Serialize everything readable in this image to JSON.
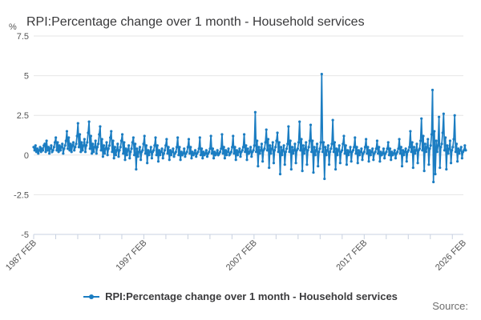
{
  "title": "RPI:Percentage change over 1 month - Household services",
  "source_label": "Source:",
  "legend": {
    "label": "RPI:Percentage change over 1 month - Household services"
  },
  "colors": {
    "line": "#1b7dc2",
    "grid": "#e6e6e6",
    "axis": "#c8d1e0",
    "tick_text": "#555555",
    "title_text": "#39393b"
  },
  "chart_data": {
    "type": "line",
    "title": "RPI:Percentage change over 1 month - Household services",
    "unit": "%",
    "frequency": "monthly",
    "xlabel": "",
    "ylabel": "%",
    "ylim": [
      -5,
      7.5
    ],
    "grid": true,
    "legend_position": "bottom",
    "y_ticks": [
      {
        "label": "7.5",
        "value": 7.5
      },
      {
        "label": "5",
        "value": 5
      },
      {
        "label": "2.5",
        "value": 2.5
      },
      {
        "label": "0",
        "value": 0
      },
      {
        "label": "-2.5",
        "value": -2.5
      },
      {
        "label": "-5",
        "value": -5
      }
    ],
    "x_ticks": [
      {
        "label": "1987 FEB",
        "year": 1987.083
      },
      {
        "label": "1997 FEB",
        "year": 1997.083
      },
      {
        "label": "2007 FEB",
        "year": 2007.083
      },
      {
        "label": "2017 FEB",
        "year": 2017.083
      },
      {
        "label": "2026 FEB",
        "year": 2026.083
      }
    ],
    "x_range_years": [
      1987.083,
      2026.083
    ],
    "minor_tick_step_years": 2,
    "series": [
      {
        "name": "RPI:Percentage change over 1 month - Household services",
        "start": "1987 FEB",
        "end": "2026 FEB",
        "values": [
          0.5,
          0.3,
          0.6,
          0.2,
          0.4,
          0.1,
          0.3,
          0.5,
          0.2,
          0.4,
          0.3,
          0.6,
          0.7,
          0.2,
          0.9,
          0.3,
          0.5,
          0.1,
          0.4,
          0.6,
          0.2,
          0.3,
          0.5,
          0.8,
          1.1,
          0.3,
          0.8,
          0.2,
          0.6,
          0.3,
          0.5,
          0.7,
          0.1,
          0.4,
          0.6,
          0.9,
          1.5,
          0.4,
          1.1,
          0.3,
          0.7,
          0.2,
          0.6,
          0.8,
          0.3,
          0.5,
          0.7,
          1.2,
          2.0,
          0.5,
          1.3,
          0.2,
          0.8,
          0.3,
          0.6,
          1.0,
          0.2,
          0.6,
          0.8,
          1.4,
          2.1,
          0.4,
          1.2,
          0.1,
          0.7,
          0.2,
          0.5,
          0.9,
          0.1,
          0.5,
          0.7,
          1.3,
          1.8,
          0.3,
          1.0,
          -0.1,
          0.6,
          0.1,
          0.4,
          0.8,
          0.0,
          0.4,
          0.6,
          1.1,
          1.5,
          0.2,
          0.9,
          -0.2,
          0.5,
          0.0,
          0.3,
          0.7,
          -0.1,
          0.3,
          0.5,
          0.9,
          1.3,
          0.1,
          0.8,
          -0.3,
          0.4,
          0.0,
          0.3,
          0.6,
          -0.2,
          0.2,
          0.4,
          0.8,
          1.1,
          0.0,
          0.7,
          -0.9,
          0.4,
          -0.1,
          0.2,
          0.5,
          -0.3,
          0.2,
          0.3,
          0.7,
          1.2,
          0.1,
          0.6,
          -0.5,
          0.3,
          0.0,
          0.2,
          0.5,
          -0.2,
          0.2,
          0.3,
          0.6,
          1.1,
          0.0,
          0.6,
          -0.4,
          0.3,
          0.0,
          0.2,
          0.4,
          -0.2,
          0.1,
          0.3,
          0.6,
          1.0,
          0.1,
          0.5,
          -0.3,
          0.3,
          0.0,
          0.2,
          0.4,
          -0.1,
          0.1,
          0.2,
          0.5,
          1.1,
          0.0,
          0.5,
          -0.3,
          0.2,
          0.0,
          0.1,
          0.4,
          -0.1,
          0.1,
          0.2,
          0.5,
          1.0,
          0.1,
          0.5,
          -0.2,
          0.2,
          0.0,
          0.1,
          0.3,
          -0.1,
          0.1,
          0.2,
          0.4,
          1.1,
          0.0,
          0.4,
          -0.2,
          0.2,
          0.0,
          0.1,
          0.3,
          -0.1,
          0.1,
          0.2,
          0.4,
          1.2,
          0.1,
          0.4,
          -0.2,
          0.2,
          0.0,
          0.1,
          0.3,
          0.0,
          0.1,
          0.2,
          0.4,
          1.3,
          0.1,
          0.5,
          -0.2,
          0.3,
          0.0,
          0.2,
          0.4,
          0.0,
          0.1,
          0.2,
          0.5,
          1.2,
          0.1,
          0.5,
          -0.3,
          0.3,
          0.0,
          0.2,
          0.4,
          -0.1,
          0.2,
          0.3,
          0.5,
          1.3,
          0.2,
          0.6,
          -0.3,
          0.4,
          0.1,
          0.2,
          0.5,
          -0.1,
          0.2,
          0.3,
          0.6,
          2.7,
          0.2,
          0.9,
          -0.7,
          0.5,
          0.1,
          0.3,
          0.7,
          -0.4,
          0.3,
          0.4,
          0.8,
          1.6,
          0.3,
          1.0,
          -0.8,
          0.6,
          0.1,
          0.4,
          0.8,
          -0.5,
          0.3,
          0.5,
          0.9,
          1.4,
          0.2,
          0.8,
          -1.2,
          0.5,
          0.0,
          0.3,
          0.6,
          -0.6,
          0.2,
          0.4,
          0.7,
          1.8,
          0.2,
          0.9,
          -0.9,
          0.5,
          0.1,
          0.3,
          0.7,
          -0.5,
          0.3,
          0.4,
          0.8,
          2.1,
          0.3,
          1.0,
          -1.0,
          0.6,
          0.1,
          0.4,
          0.8,
          -0.6,
          0.3,
          0.5,
          0.9,
          1.9,
          0.2,
          0.9,
          -1.1,
          0.5,
          0.0,
          0.3,
          0.7,
          -0.7,
          0.2,
          0.4,
          0.8,
          5.1,
          0.2,
          0.8,
          -1.5,
          0.5,
          0.0,
          0.3,
          0.6,
          -0.6,
          0.2,
          0.4,
          0.7,
          2.2,
          0.2,
          0.8,
          -0.9,
          0.4,
          0.0,
          0.3,
          0.6,
          -0.5,
          0.2,
          0.3,
          0.7,
          1.2,
          0.1,
          0.6,
          -0.6,
          0.3,
          0.0,
          0.2,
          0.5,
          -0.4,
          0.2,
          0.3,
          0.5,
          1.1,
          0.1,
          0.5,
          -0.5,
          0.3,
          0.0,
          0.2,
          0.4,
          -0.3,
          0.1,
          0.2,
          0.5,
          1.0,
          0.1,
          0.5,
          -0.4,
          0.3,
          0.0,
          0.2,
          0.4,
          -0.3,
          0.1,
          0.2,
          0.4,
          0.9,
          0.1,
          0.5,
          -0.4,
          0.2,
          0.0,
          0.1,
          0.4,
          -0.2,
          0.1,
          0.2,
          0.4,
          0.8,
          0.0,
          0.4,
          -0.3,
          0.2,
          0.0,
          0.1,
          0.3,
          -0.2,
          0.1,
          0.2,
          0.4,
          1.0,
          0.1,
          0.5,
          -0.7,
          0.3,
          0.0,
          0.2,
          0.4,
          -0.4,
          0.2,
          0.3,
          0.5,
          1.5,
          0.2,
          0.8,
          -0.8,
          0.5,
          0.1,
          0.3,
          0.7,
          -0.5,
          0.3,
          0.4,
          0.9,
          2.3,
          0.3,
          1.2,
          -1.0,
          0.7,
          0.2,
          0.5,
          1.0,
          -0.6,
          0.4,
          0.6,
          1.3,
          4.1,
          -1.7,
          1.5,
          -1.2,
          0.9,
          0.2,
          0.6,
          2.4,
          -0.8,
          0.5,
          0.7,
          1.4,
          2.6,
          0.3,
          1.1,
          -0.9,
          0.6,
          0.1,
          0.4,
          0.9,
          -0.5,
          0.3,
          0.5,
          1.0,
          2.5,
          0.2,
          0.7,
          -0.4,
          0.4,
          0.1,
          0.3,
          0.5,
          -0.2,
          0.2,
          0.3,
          0.6,
          0.3
        ]
      }
    ]
  }
}
